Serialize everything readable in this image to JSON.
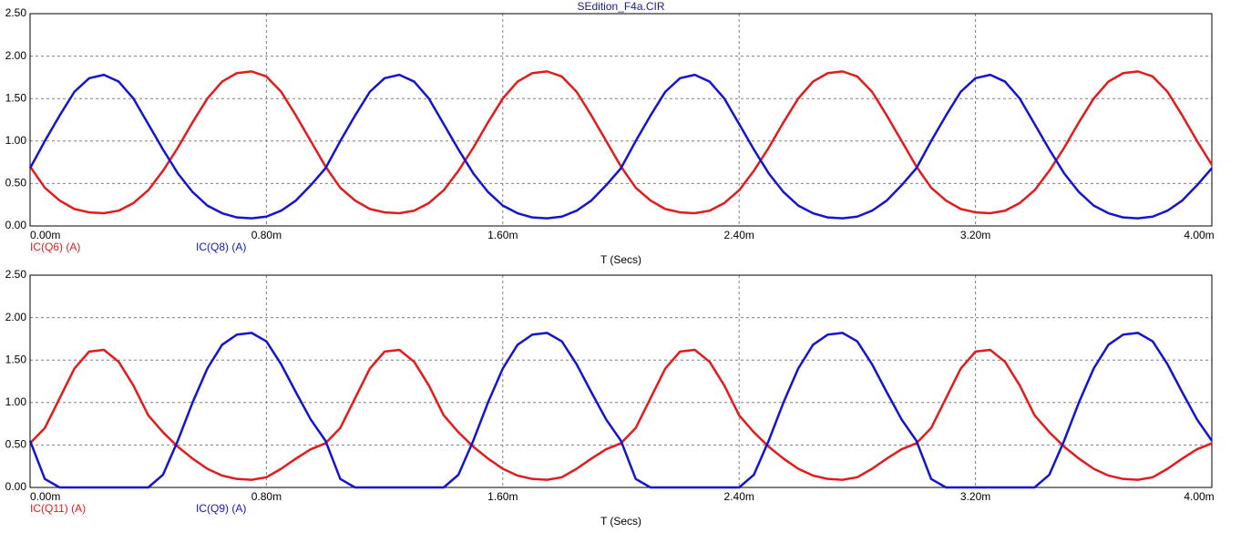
{
  "chart_data": [
    {
      "type": "line",
      "title": "SEdition_F4a.CIR",
      "x_label": "T (Secs)",
      "grid": true,
      "xlim": [
        0,
        0.004
      ],
      "ylim": [
        0,
        2.5
      ],
      "xticks": [
        {
          "value": 0,
          "label": "0.00m"
        },
        {
          "value": 0.0008,
          "label": "0.80m"
        },
        {
          "value": 0.0016,
          "label": "1.60m"
        },
        {
          "value": 0.0024,
          "label": "2.40m"
        },
        {
          "value": 0.0032,
          "label": "3.20m"
        },
        {
          "value": 0.004,
          "label": "4.00m"
        }
      ],
      "yticks": [
        {
          "value": 0,
          "label": "0.00"
        },
        {
          "value": 0.5,
          "label": "0.50"
        },
        {
          "value": 1,
          "label": "1.00"
        },
        {
          "value": 1.5,
          "label": "1.50"
        },
        {
          "value": 2,
          "label": "2.00"
        },
        {
          "value": 2.5,
          "label": "2.50"
        }
      ],
      "x": [
        0,
        5e-05,
        0.0001,
        0.00015,
        0.0002,
        0.00025,
        0.0003,
        0.00035,
        0.0004,
        0.00045,
        0.0005,
        0.00055,
        0.0006,
        0.00065,
        0.0007,
        0.00075,
        0.0008,
        0.00085,
        0.0009,
        0.00095,
        0.001,
        0.00105,
        0.0011,
        0.00115,
        0.0012,
        0.00125,
        0.0013,
        0.00135,
        0.0014,
        0.00145,
        0.0015,
        0.00155,
        0.0016,
        0.00165,
        0.0017,
        0.00175,
        0.0018,
        0.00185,
        0.0019,
        0.00195,
        0.002,
        0.00205,
        0.0021,
        0.00215,
        0.0022,
        0.00225,
        0.0023,
        0.00235,
        0.0024,
        0.00245,
        0.0025,
        0.00255,
        0.0026,
        0.00265,
        0.0027,
        0.00275,
        0.0028,
        0.00285,
        0.0029,
        0.00295,
        0.003,
        0.00305,
        0.0031,
        0.00315,
        0.0032,
        0.00325,
        0.0033,
        0.00335,
        0.0034,
        0.00345,
        0.0035,
        0.00355,
        0.0036,
        0.00365,
        0.0037,
        0.00375,
        0.0038,
        0.00385,
        0.0039,
        0.00395,
        0.004
      ],
      "series": [
        {
          "name": "IC(Q6) (A)",
          "color": "#e41a1c",
          "values": [
            0.7,
            0.45,
            0.3,
            0.2,
            0.16,
            0.15,
            0.18,
            0.27,
            0.42,
            0.65,
            0.92,
            1.22,
            1.5,
            1.7,
            1.8,
            1.82,
            1.76,
            1.58,
            1.3,
            1.0,
            0.7,
            0.45,
            0.3,
            0.2,
            0.16,
            0.15,
            0.18,
            0.27,
            0.42,
            0.65,
            0.92,
            1.22,
            1.5,
            1.7,
            1.8,
            1.82,
            1.76,
            1.58,
            1.3,
            1.0,
            0.7,
            0.45,
            0.3,
            0.2,
            0.16,
            0.15,
            0.18,
            0.27,
            0.42,
            0.65,
            0.92,
            1.22,
            1.5,
            1.7,
            1.8,
            1.82,
            1.76,
            1.58,
            1.3,
            1.0,
            0.7,
            0.45,
            0.3,
            0.2,
            0.16,
            0.15,
            0.18,
            0.27,
            0.42,
            0.65,
            0.92,
            1.22,
            1.5,
            1.7,
            1.8,
            1.82,
            1.76,
            1.58,
            1.3,
            1.0,
            0.72
          ]
        },
        {
          "name": "IC(Q8) (A)",
          "color": "#1414d2",
          "values": [
            0.68,
            1.0,
            1.3,
            1.58,
            1.74,
            1.78,
            1.7,
            1.5,
            1.2,
            0.9,
            0.62,
            0.4,
            0.24,
            0.15,
            0.1,
            0.09,
            0.11,
            0.18,
            0.3,
            0.48,
            0.68,
            1.0,
            1.3,
            1.58,
            1.74,
            1.78,
            1.7,
            1.5,
            1.2,
            0.9,
            0.62,
            0.4,
            0.24,
            0.15,
            0.1,
            0.09,
            0.11,
            0.18,
            0.3,
            0.48,
            0.68,
            1.0,
            1.3,
            1.58,
            1.74,
            1.78,
            1.7,
            1.5,
            1.2,
            0.9,
            0.62,
            0.4,
            0.24,
            0.15,
            0.1,
            0.09,
            0.11,
            0.18,
            0.3,
            0.48,
            0.68,
            1.0,
            1.3,
            1.58,
            1.74,
            1.78,
            1.7,
            1.5,
            1.2,
            0.9,
            0.62,
            0.4,
            0.24,
            0.15,
            0.1,
            0.09,
            0.11,
            0.18,
            0.3,
            0.48,
            0.68
          ]
        }
      ]
    },
    {
      "type": "line",
      "x_label": "T (Secs)",
      "grid": true,
      "xlim": [
        0,
        0.004
      ],
      "ylim": [
        0,
        2.5
      ],
      "xticks": [
        {
          "value": 0,
          "label": "0.00m"
        },
        {
          "value": 0.0008,
          "label": "0.80m"
        },
        {
          "value": 0.0016,
          "label": "1.60m"
        },
        {
          "value": 0.0024,
          "label": "2.40m"
        },
        {
          "value": 0.0032,
          "label": "3.20m"
        },
        {
          "value": 0.004,
          "label": "4.00m"
        }
      ],
      "yticks": [
        {
          "value": 0,
          "label": "0.00"
        },
        {
          "value": 0.5,
          "label": "0.50"
        },
        {
          "value": 1,
          "label": "1.00"
        },
        {
          "value": 1.5,
          "label": "1.50"
        },
        {
          "value": 2,
          "label": "2.00"
        },
        {
          "value": 2.5,
          "label": "2.50"
        }
      ],
      "x": [
        0,
        5e-05,
        0.0001,
        0.00015,
        0.0002,
        0.00025,
        0.0003,
        0.00035,
        0.0004,
        0.00045,
        0.0005,
        0.00055,
        0.0006,
        0.00065,
        0.0007,
        0.00075,
        0.0008,
        0.00085,
        0.0009,
        0.00095,
        0.001,
        0.00105,
        0.0011,
        0.00115,
        0.0012,
        0.00125,
        0.0013,
        0.00135,
        0.0014,
        0.00145,
        0.0015,
        0.00155,
        0.0016,
        0.00165,
        0.0017,
        0.00175,
        0.0018,
        0.00185,
        0.0019,
        0.00195,
        0.002,
        0.00205,
        0.0021,
        0.00215,
        0.0022,
        0.00225,
        0.0023,
        0.00235,
        0.0024,
        0.00245,
        0.0025,
        0.00255,
        0.0026,
        0.00265,
        0.0027,
        0.00275,
        0.0028,
        0.00285,
        0.0029,
        0.00295,
        0.003,
        0.00305,
        0.0031,
        0.00315,
        0.0032,
        0.00325,
        0.0033,
        0.00335,
        0.0034,
        0.00345,
        0.0035,
        0.00355,
        0.0036,
        0.00365,
        0.0037,
        0.00375,
        0.0038,
        0.00385,
        0.0039,
        0.00395,
        0.004
      ],
      "series": [
        {
          "name": "IC(Q11) (A)",
          "color": "#e41a1c",
          "values": [
            0.52,
            0.7,
            1.05,
            1.4,
            1.6,
            1.62,
            1.48,
            1.2,
            0.85,
            0.65,
            0.48,
            0.34,
            0.22,
            0.14,
            0.1,
            0.09,
            0.12,
            0.22,
            0.34,
            0.45,
            0.52,
            0.7,
            1.05,
            1.4,
            1.6,
            1.62,
            1.48,
            1.2,
            0.85,
            0.65,
            0.48,
            0.34,
            0.22,
            0.14,
            0.1,
            0.09,
            0.12,
            0.22,
            0.34,
            0.45,
            0.52,
            0.7,
            1.05,
            1.4,
            1.6,
            1.62,
            1.48,
            1.2,
            0.85,
            0.65,
            0.48,
            0.34,
            0.22,
            0.14,
            0.1,
            0.09,
            0.12,
            0.22,
            0.34,
            0.45,
            0.52,
            0.7,
            1.05,
            1.4,
            1.6,
            1.62,
            1.48,
            1.2,
            0.85,
            0.65,
            0.48,
            0.34,
            0.22,
            0.14,
            0.1,
            0.09,
            0.12,
            0.22,
            0.34,
            0.45,
            0.52
          ]
        },
        {
          "name": "IC(Q9) (A)",
          "color": "#1414d2",
          "values": [
            0.55,
            0.1,
            0,
            0,
            0,
            0,
            0,
            0,
            0,
            0.15,
            0.55,
            1.0,
            1.4,
            1.68,
            1.8,
            1.82,
            1.72,
            1.45,
            1.12,
            0.8,
            0.55,
            0.1,
            0,
            0,
            0,
            0,
            0,
            0,
            0,
            0.15,
            0.55,
            1.0,
            1.4,
            1.68,
            1.8,
            1.82,
            1.72,
            1.45,
            1.12,
            0.8,
            0.55,
            0.1,
            0,
            0,
            0,
            0,
            0,
            0,
            0,
            0.15,
            0.55,
            1.0,
            1.4,
            1.68,
            1.8,
            1.82,
            1.72,
            1.45,
            1.12,
            0.8,
            0.55,
            0.1,
            0,
            0,
            0,
            0,
            0,
            0,
            0,
            0.15,
            0.55,
            1.0,
            1.4,
            1.68,
            1.8,
            1.82,
            1.72,
            1.45,
            1.12,
            0.8,
            0.55
          ]
        }
      ]
    }
  ]
}
